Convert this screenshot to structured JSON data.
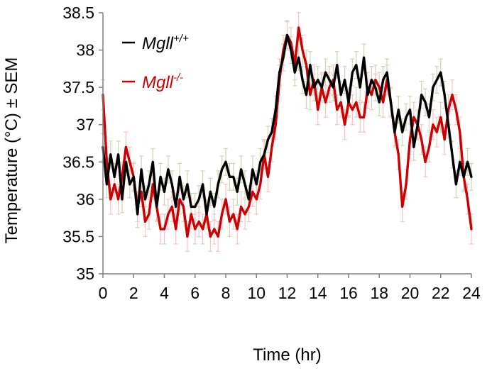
{
  "chart_data": {
    "type": "line",
    "xlabel": "Time  (hr)",
    "ylabel": "Temperature  (°C) ± SEM",
    "xlim": [
      0,
      24
    ],
    "ylim": [
      35,
      38.5
    ],
    "x_ticks": [
      0,
      2,
      4,
      6,
      8,
      10,
      12,
      14,
      16,
      18,
      20,
      22,
      24
    ],
    "x_tick_labels": [
      "0",
      "2",
      "4",
      "6",
      "8",
      "10",
      "12",
      "14",
      "16",
      "18",
      "20",
      "22",
      "24"
    ],
    "y_ticks": [
      35,
      35.5,
      36,
      36.5,
      37,
      37.5,
      38,
      38.5
    ],
    "y_tick_labels": [
      "35",
      "35.5",
      "36",
      "36.5",
      "37",
      "37.5",
      "38",
      "38.5"
    ],
    "grid": false,
    "legend_position": "top-left",
    "error_bars": "SEM",
    "series": [
      {
        "name": "Mgll+/+",
        "label_base": "Mgll",
        "label_sup": "+/+",
        "color": "#000000",
        "error_color": "#c8d8b0",
        "sem": 0.18,
        "x": [
          0,
          0.25,
          0.5,
          0.75,
          1,
          1.25,
          1.5,
          1.75,
          2,
          2.25,
          2.5,
          2.75,
          3,
          3.25,
          3.5,
          3.75,
          4,
          4.25,
          4.5,
          4.75,
          5,
          5.25,
          5.5,
          5.75,
          6,
          6.25,
          6.5,
          6.75,
          7,
          7.25,
          7.5,
          7.75,
          8,
          8.25,
          8.5,
          8.75,
          9,
          9.25,
          9.5,
          9.75,
          10,
          10.25,
          10.5,
          10.75,
          11,
          11.25,
          11.5,
          11.75,
          12,
          12.25,
          12.5,
          12.75,
          13,
          13.25,
          13.5,
          13.75,
          14,
          14.25,
          14.5,
          14.75,
          15,
          15.25,
          15.5,
          15.75,
          16,
          16.25,
          16.5,
          16.75,
          17,
          17.25,
          17.5,
          17.75,
          18,
          18.25,
          18.5,
          18.75,
          19,
          19.25,
          19.5,
          19.75,
          20,
          20.25,
          20.5,
          20.75,
          21,
          21.25,
          21.5,
          21.75,
          22,
          22.25,
          22.5,
          22.75,
          23,
          23.25,
          23.5,
          23.75,
          24
        ],
        "values": [
          36.7,
          36.2,
          36.6,
          36.3,
          36.6,
          36.0,
          36.5,
          36.2,
          36.3,
          35.8,
          36.4,
          36.0,
          36.2,
          36.5,
          35.9,
          36.3,
          36.1,
          36.4,
          36.2,
          35.9,
          36.3,
          36.0,
          36.2,
          35.9,
          35.9,
          36.0,
          36.2,
          35.8,
          36.1,
          35.9,
          36.2,
          36.4,
          36.5,
          36.3,
          36.3,
          36.1,
          36.4,
          36.2,
          36.0,
          36.4,
          36.2,
          36.5,
          36.6,
          36.8,
          36.9,
          37.2,
          37.7,
          37.9,
          38.2,
          38.0,
          37.7,
          37.9,
          37.6,
          37.4,
          37.8,
          37.5,
          37.6,
          37.5,
          37.7,
          37.6,
          37.5,
          37.8,
          37.4,
          37.6,
          37.3,
          37.7,
          37.8,
          37.5,
          37.9,
          37.4,
          37.6,
          37.5,
          37.3,
          37.6,
          37.7,
          37.3,
          36.9,
          37.2,
          36.9,
          37.1,
          37.2,
          36.7,
          37.0,
          37.4,
          37.3,
          37.1,
          37.5,
          37.6,
          37.7,
          37.4,
          37.0,
          36.6,
          36.2,
          36.5,
          36.3,
          36.5,
          36.3
        ],
        "line_width": 3.4
      },
      {
        "name": "Mgll-/-",
        "label_base": "Mgll",
        "label_sup": "-/-",
        "color": "#cc0000",
        "error_color": "#f2c4c4",
        "sem": 0.2,
        "x": [
          0,
          0.25,
          0.5,
          0.75,
          1,
          1.25,
          1.5,
          1.75,
          2,
          2.25,
          2.5,
          2.75,
          3,
          3.25,
          3.5,
          3.75,
          4,
          4.25,
          4.5,
          4.75,
          5,
          5.25,
          5.5,
          5.75,
          6,
          6.25,
          6.5,
          6.75,
          7,
          7.25,
          7.5,
          7.75,
          8,
          8.25,
          8.5,
          8.75,
          9,
          9.25,
          9.5,
          9.75,
          10,
          10.25,
          10.5,
          10.75,
          11,
          11.25,
          11.5,
          11.75,
          12,
          12.25,
          12.5,
          12.75,
          13,
          13.25,
          13.5,
          13.75,
          14,
          14.25,
          14.5,
          14.75,
          15,
          15.25,
          15.5,
          15.75,
          16,
          16.25,
          16.5,
          16.75,
          17,
          17.25,
          17.5,
          17.75,
          18,
          18.25,
          18.5,
          18.75,
          19,
          19.25,
          19.5,
          19.75,
          20,
          20.25,
          20.5,
          20.75,
          21,
          21.25,
          21.5,
          21.75,
          22,
          22.25,
          22.5,
          22.75,
          23,
          23.25,
          23.5,
          23.75,
          24
        ],
        "values": [
          37.4,
          36.5,
          36.0,
          36.2,
          36.0,
          36.3,
          36.7,
          36.5,
          36.3,
          35.9,
          36.1,
          35.7,
          35.8,
          36.2,
          35.9,
          35.6,
          35.6,
          35.8,
          35.9,
          35.6,
          36.0,
          35.9,
          35.5,
          35.8,
          35.6,
          35.7,
          35.6,
          35.8,
          35.5,
          35.6,
          35.5,
          35.8,
          36.0,
          35.7,
          35.8,
          35.6,
          35.9,
          35.8,
          35.9,
          36.1,
          36.0,
          36.2,
          36.6,
          36.3,
          36.7,
          37.0,
          37.6,
          38.0,
          38.2,
          38.1,
          37.8,
          38.3,
          38.0,
          37.8,
          37.4,
          37.6,
          37.2,
          37.5,
          37.3,
          37.5,
          37.6,
          37.2,
          37.3,
          37.0,
          37.3,
          37.2,
          37.3,
          37.1,
          37.1,
          37.5,
          37.4,
          37.6,
          37.5,
          37.3,
          37.6,
          37.3,
          36.9,
          36.6,
          35.9,
          36.2,
          36.8,
          37.1,
          37.0,
          36.8,
          36.5,
          36.7,
          37.0,
          36.9,
          37.1,
          36.8,
          37.2,
          37.4,
          37.2,
          36.9,
          36.3,
          36.0,
          35.6
        ],
        "line_width": 3.4
      }
    ]
  }
}
